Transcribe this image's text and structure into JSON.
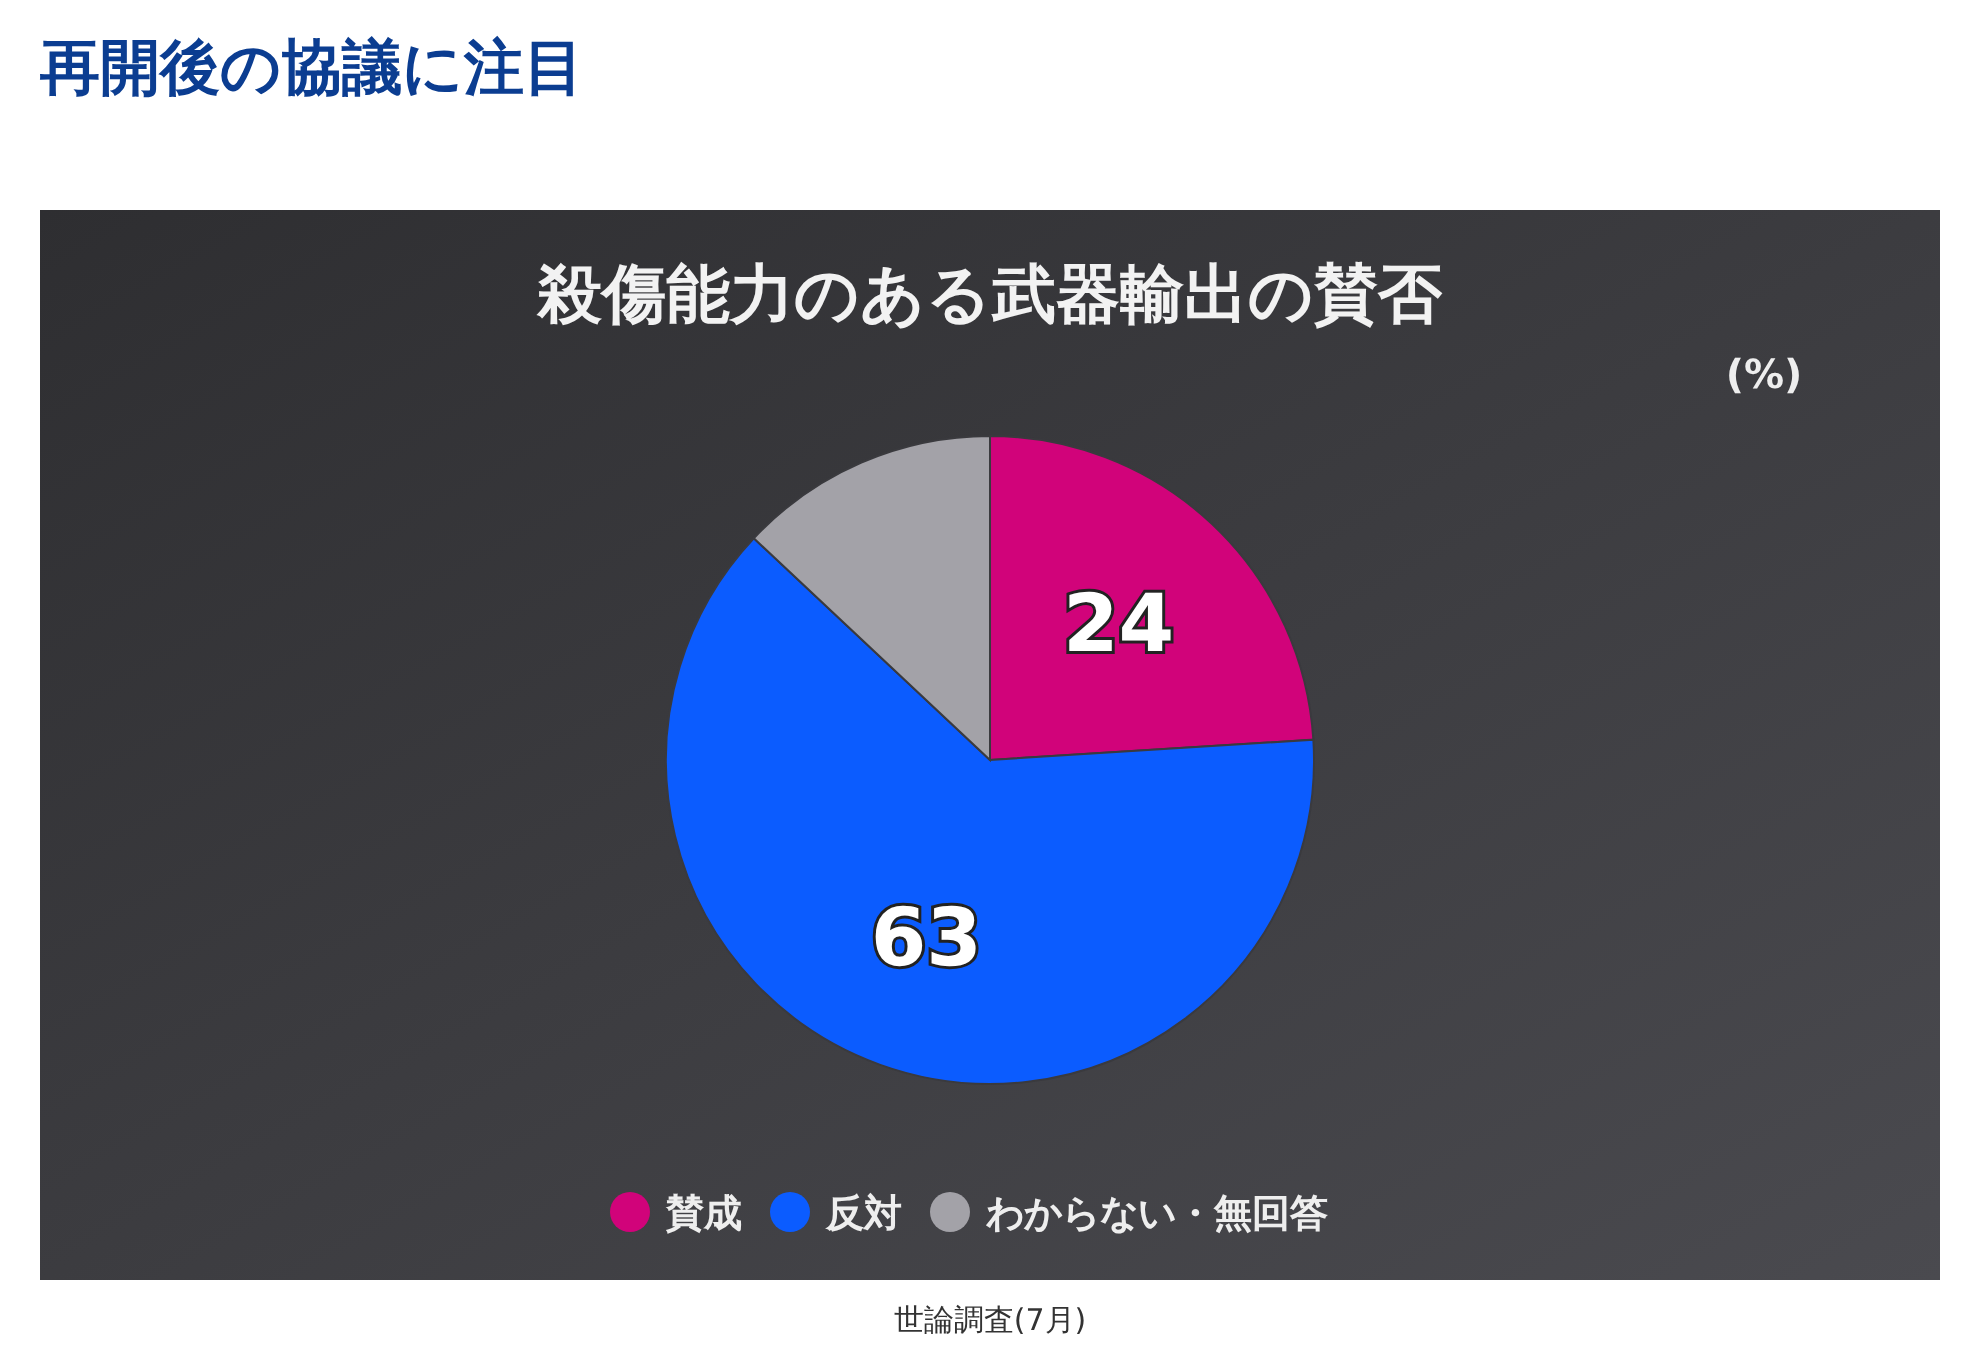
{
  "chart_data": {
    "type": "pie",
    "title": "再開後の協議に注目",
    "subtitle": "殺傷能力のある武器輸出の賛否",
    "categories": [
      "賛成",
      "反対",
      "わからない・無回答"
    ],
    "values": [
      24,
      63,
      13
    ],
    "colors": [
      "#d1037a",
      "#0b5cff",
      "#a3a2a8"
    ],
    "value_labels": [
      "24",
      "63",
      null
    ],
    "legend": "bottom",
    "annotations": [
      "(%)",
      "世論調査(7月)"
    ]
  }
}
